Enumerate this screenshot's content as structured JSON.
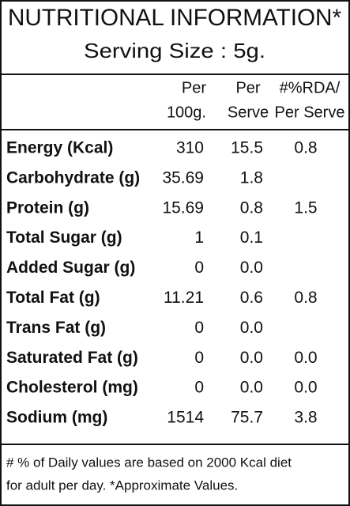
{
  "header": {
    "title": "NUTRITIONAL INFORMATION*",
    "subtitle": "Serving Size : 5g."
  },
  "table": {
    "columns": [
      [
        "Per",
        "100g."
      ],
      [
        "Per",
        "Serve"
      ],
      [
        "#%RDA/",
        "Per Serve"
      ]
    ],
    "rows": [
      {
        "label": "Energy (Kcal)",
        "per_100g": "310",
        "per_serve": "15.5",
        "rda": "0.8"
      },
      {
        "label": "Carbohydrate (g)",
        "per_100g": "35.69",
        "per_serve": "1.8"
      },
      {
        "label": "Protein (g)",
        "per_100g": "15.69",
        "per_serve": "0.8",
        "rda": "1.5"
      },
      {
        "label": "Total Sugar (g)",
        "per_100g": "1",
        "per_serve": "0.1"
      },
      {
        "label": "Added Sugar (g)",
        "per_100g": "0",
        "per_serve": "0.0"
      },
      {
        "label": "Total Fat (g)",
        "per_100g": "11.21",
        "per_serve": "0.6",
        "rda": "0.8"
      },
      {
        "label": "Trans Fat (g)",
        "per_100g": "0",
        "per_serve": "0.0"
      },
      {
        "label": "Saturated Fat (g)",
        "per_100g": "0",
        "per_serve": "0.0",
        "rda": "0.0"
      },
      {
        "label": "Cholesterol (mg)",
        "per_100g": "0",
        "per_serve": "0.0",
        "rda": "0.0"
      },
      {
        "label": "Sodium (mg)",
        "per_100g": "1514",
        "per_serve": "75.7",
        "rda": "3.8"
      }
    ]
  },
  "footer": {
    "lines": [
      "# % of Daily values are based on 2000 Kcal diet",
      "for adult per day. *Approximate Values."
    ]
  }
}
